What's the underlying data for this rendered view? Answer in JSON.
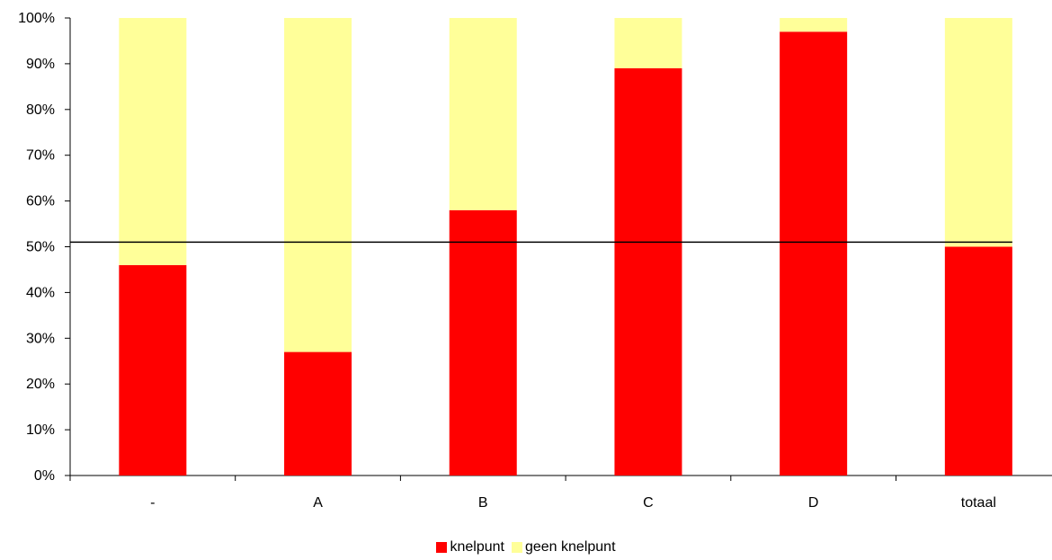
{
  "chart_data": {
    "type": "bar",
    "stacked": true,
    "percent": true,
    "categories": [
      "-",
      "A",
      "B",
      "C",
      "D",
      "totaal"
    ],
    "series": [
      {
        "name": "knelpunt",
        "color": "#ff0000",
        "values": [
          46,
          27,
          58,
          89,
          97,
          50
        ]
      },
      {
        "name": "geen knelpunt",
        "color": "#ffff99",
        "values": [
          54,
          73,
          42,
          11,
          3,
          50
        ]
      }
    ],
    "reference_line": {
      "y": 51,
      "color": "#000000"
    },
    "ylim": [
      0,
      100
    ],
    "yticks": [
      "0%",
      "10%",
      "20%",
      "30%",
      "40%",
      "50%",
      "60%",
      "70%",
      "80%",
      "90%",
      "100%"
    ],
    "title": "",
    "xlabel": "",
    "ylabel": "",
    "grid": false,
    "legend_position": "bottom"
  }
}
